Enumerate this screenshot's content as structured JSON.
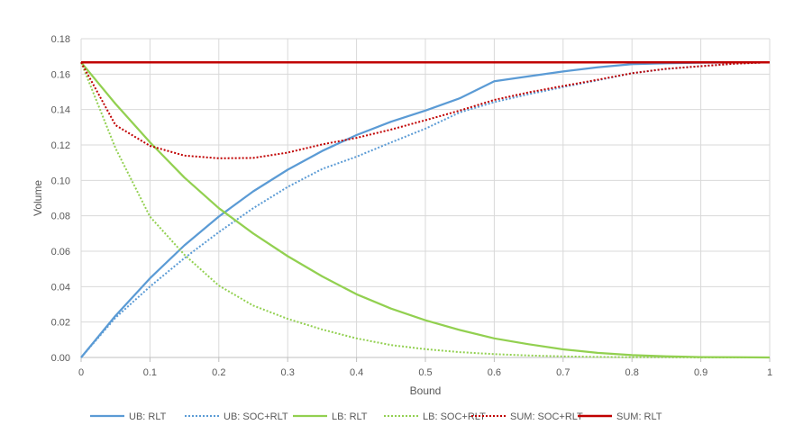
{
  "chart_data": {
    "type": "line",
    "xlabel": "Bound",
    "ylabel": "Volume",
    "xlim": [
      0,
      1
    ],
    "ylim": [
      0,
      0.18
    ],
    "x_ticks": [
      0,
      0.1,
      0.2,
      0.3,
      0.4,
      0.5,
      0.6,
      0.7,
      0.8,
      0.9,
      1
    ],
    "x_tick_labels": [
      "0",
      "0.1",
      "0.2",
      "0.3",
      "0.4",
      "0.5",
      "0.6",
      "0.7",
      "0.8",
      "0.9",
      "1"
    ],
    "y_ticks": [
      0,
      0.02,
      0.04,
      0.06,
      0.08,
      0.1,
      0.12,
      0.14,
      0.16,
      0.18
    ],
    "y_tick_labels": [
      "0.00",
      "0.02",
      "0.04",
      "0.06",
      "0.08",
      "0.10",
      "0.12",
      "0.14",
      "0.16",
      "0.18"
    ],
    "grid": "vertical and horizontal",
    "legend_position": "bottom",
    "x": [
      0,
      0.05,
      0.1,
      0.15,
      0.2,
      0.25,
      0.3,
      0.35,
      0.4,
      0.45,
      0.5,
      0.55,
      0.6,
      0.65,
      0.7,
      0.75,
      0.8,
      0.85,
      0.9,
      0.95,
      1
    ],
    "series": [
      {
        "name": "UB: RLT",
        "color": "#5B9BD5",
        "dash": "solid",
        "values": [
          0,
          0.0236,
          0.0447,
          0.0633,
          0.0796,
          0.0938,
          0.106,
          0.1166,
          0.1256,
          0.1331,
          0.1394,
          0.1464,
          0.156,
          0.1588,
          0.1615,
          0.1639,
          0.1656,
          0.1661,
          0.1665,
          0.1666,
          0.1667
        ]
      },
      {
        "name": "UB: SOC+RLT",
        "color": "#5B9BD5",
        "dash": "dotted",
        "values": [
          0,
          0.0225,
          0.04,
          0.0561,
          0.0708,
          0.0843,
          0.0963,
          0.1064,
          0.1134,
          0.1214,
          0.1292,
          0.1384,
          0.1442,
          0.1487,
          0.1527,
          0.1565,
          0.1605,
          0.1629,
          0.1645,
          0.1659,
          0.1667
        ]
      },
      {
        "name": "LB: RLT",
        "color": "#92D050",
        "dash": "solid",
        "values": [
          0.1667,
          0.1432,
          0.1215,
          0.1016,
          0.0843,
          0.07,
          0.0572,
          0.0458,
          0.0357,
          0.0276,
          0.021,
          0.0155,
          0.0108,
          0.0075,
          0.0046,
          0.0026,
          0.0013,
          0.0006,
          0.0002,
          0.0001,
          0
        ]
      },
      {
        "name": "LB: SOC+RLT",
        "color": "#92D050",
        "dash": "dotted",
        "values": [
          0.1667,
          0.1181,
          0.0795,
          0.058,
          0.0406,
          0.0293,
          0.0218,
          0.0158,
          0.0108,
          0.007,
          0.0047,
          0.003,
          0.0019,
          0.0011,
          0.0006,
          0.0003,
          0.0001,
          0.0001,
          0,
          0,
          0
        ]
      },
      {
        "name": "SUM: SOC+RLT",
        "color": "#C00000",
        "dash": "dotted",
        "values": [
          0.1667,
          0.1312,
          0.1195,
          0.114,
          0.1125,
          0.1127,
          0.1157,
          0.1203,
          0.124,
          0.1287,
          0.134,
          0.1394,
          0.1454,
          0.1497,
          0.1533,
          0.1568,
          0.1605,
          0.163,
          0.1645,
          0.1659,
          0.1667
        ]
      },
      {
        "name": "SUM: RLT",
        "color": "#C00000",
        "dash": "solid",
        "values": [
          0.1667,
          0.1667,
          0.1667,
          0.1667,
          0.1667,
          0.1667,
          0.1667,
          0.1667,
          0.1667,
          0.1667,
          0.1667,
          0.1667,
          0.1667,
          0.1667,
          0.1667,
          0.1667,
          0.1667,
          0.1667,
          0.1667,
          0.1667,
          0.1667
        ]
      }
    ]
  }
}
